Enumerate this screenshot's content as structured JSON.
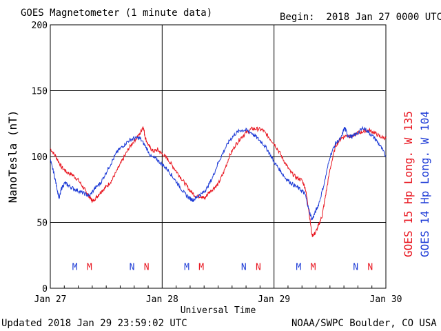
{
  "header": {
    "title": "GOES Magnetometer (1 minute data)",
    "begin": "Begin:  2018 Jan 27 0000 UTC"
  },
  "footer": {
    "updated": "Updated 2018 Jan 29 23:59:02 UTC",
    "credit": "NOAA/SWPC Boulder, CO USA"
  },
  "chart_data": {
    "type": "line",
    "xlabel": "Universal Time",
    "ylabel": "NanoTesla (nT)",
    "xlim": [
      0,
      3
    ],
    "ylim": [
      0,
      200
    ],
    "grid": true,
    "x_ticks": [
      {
        "value": 0,
        "label": "Jan 27"
      },
      {
        "value": 1,
        "label": "Jan 28"
      },
      {
        "value": 2,
        "label": "Jan 29"
      },
      {
        "value": 3,
        "label": "Jan 30"
      }
    ],
    "y_ticks": [
      0,
      50,
      100,
      150,
      200
    ],
    "legend_placement": "right-vertical",
    "series": [
      {
        "name": "GOES 15 Hp  Long. W 135",
        "color": "#e8141e",
        "points": [
          [
            0,
            106
          ],
          [
            0.05,
            100
          ],
          [
            0.1,
            92
          ],
          [
            0.15,
            88
          ],
          [
            0.2,
            86
          ],
          [
            0.25,
            82
          ],
          [
            0.3,
            76
          ],
          [
            0.33,
            72
          ],
          [
            0.36,
            68
          ],
          [
            0.38,
            66
          ],
          [
            0.42,
            70
          ],
          [
            0.46,
            74
          ],
          [
            0.5,
            77
          ],
          [
            0.55,
            82
          ],
          [
            0.6,
            90
          ],
          [
            0.65,
            98
          ],
          [
            0.7,
            106
          ],
          [
            0.75,
            112
          ],
          [
            0.8,
            117
          ],
          [
            0.83,
            123
          ],
          [
            0.85,
            114
          ],
          [
            0.88,
            108
          ],
          [
            0.92,
            104
          ],
          [
            0.96,
            105
          ],
          [
            1.0,
            102
          ],
          [
            1.05,
            98
          ],
          [
            1.1,
            92
          ],
          [
            1.15,
            86
          ],
          [
            1.2,
            80
          ],
          [
            1.25,
            74
          ],
          [
            1.3,
            70
          ],
          [
            1.35,
            70
          ],
          [
            1.38,
            68
          ],
          [
            1.41,
            72
          ],
          [
            1.46,
            76
          ],
          [
            1.5,
            79
          ],
          [
            1.55,
            88
          ],
          [
            1.6,
            100
          ],
          [
            1.65,
            108
          ],
          [
            1.7,
            114
          ],
          [
            1.75,
            118
          ],
          [
            1.8,
            121
          ],
          [
            1.85,
            121
          ],
          [
            1.9,
            120
          ],
          [
            1.95,
            115
          ],
          [
            2.0,
            110
          ],
          [
            2.05,
            103
          ],
          [
            2.1,
            95
          ],
          [
            2.15,
            88
          ],
          [
            2.2,
            84
          ],
          [
            2.25,
            82
          ],
          [
            2.28,
            76
          ],
          [
            2.31,
            60
          ],
          [
            2.34,
            40
          ],
          [
            2.37,
            42
          ],
          [
            2.4,
            48
          ],
          [
            2.43,
            55
          ],
          [
            2.46,
            70
          ],
          [
            2.5,
            90
          ],
          [
            2.55,
            108
          ],
          [
            2.6,
            114
          ],
          [
            2.65,
            116
          ],
          [
            2.7,
            115
          ],
          [
            2.75,
            118
          ],
          [
            2.8,
            119
          ],
          [
            2.85,
            120
          ],
          [
            2.9,
            118
          ],
          [
            2.95,
            115
          ],
          [
            3.0,
            114
          ]
        ]
      },
      {
        "name": "GOES 14 Hp  Long. W 104",
        "color": "#1c3ad6",
        "points": [
          [
            0,
            97
          ],
          [
            0.03,
            88
          ],
          [
            0.06,
            76
          ],
          [
            0.08,
            68
          ],
          [
            0.1,
            76
          ],
          [
            0.13,
            80
          ],
          [
            0.16,
            78
          ],
          [
            0.2,
            76
          ],
          [
            0.25,
            74
          ],
          [
            0.3,
            72
          ],
          [
            0.35,
            70
          ],
          [
            0.4,
            76
          ],
          [
            0.45,
            80
          ],
          [
            0.5,
            88
          ],
          [
            0.55,
            96
          ],
          [
            0.6,
            104
          ],
          [
            0.65,
            108
          ],
          [
            0.7,
            112
          ],
          [
            0.75,
            114
          ],
          [
            0.8,
            114
          ],
          [
            0.85,
            108
          ],
          [
            0.9,
            100
          ],
          [
            0.95,
            98
          ],
          [
            1.0,
            94
          ],
          [
            1.05,
            90
          ],
          [
            1.1,
            84
          ],
          [
            1.15,
            78
          ],
          [
            1.2,
            72
          ],
          [
            1.25,
            68
          ],
          [
            1.28,
            67
          ],
          [
            1.32,
            70
          ],
          [
            1.36,
            72
          ],
          [
            1.4,
            76
          ],
          [
            1.45,
            84
          ],
          [
            1.5,
            95
          ],
          [
            1.55,
            104
          ],
          [
            1.6,
            112
          ],
          [
            1.65,
            117
          ],
          [
            1.7,
            120
          ],
          [
            1.75,
            120
          ],
          [
            1.8,
            118
          ],
          [
            1.85,
            114
          ],
          [
            1.9,
            110
          ],
          [
            1.95,
            104
          ],
          [
            2.0,
            96
          ],
          [
            2.05,
            90
          ],
          [
            2.1,
            84
          ],
          [
            2.15,
            80
          ],
          [
            2.2,
            77
          ],
          [
            2.25,
            74
          ],
          [
            2.28,
            71
          ],
          [
            2.31,
            60
          ],
          [
            2.34,
            52
          ],
          [
            2.37,
            58
          ],
          [
            2.4,
            64
          ],
          [
            2.45,
            80
          ],
          [
            2.5,
            100
          ],
          [
            2.55,
            110
          ],
          [
            2.6,
            114
          ],
          [
            2.63,
            122
          ],
          [
            2.66,
            116
          ],
          [
            2.7,
            115
          ],
          [
            2.75,
            118
          ],
          [
            2.8,
            122
          ],
          [
            2.85,
            118
          ],
          [
            2.9,
            114
          ],
          [
            2.95,
            108
          ],
          [
            3.0,
            100
          ]
        ]
      }
    ],
    "markers": [
      {
        "label": "M",
        "x": 0.22,
        "color": "#1c3ad6"
      },
      {
        "label": "M",
        "x": 0.35,
        "color": "#e8141e"
      },
      {
        "label": "N",
        "x": 0.73,
        "color": "#1c3ad6"
      },
      {
        "label": "N",
        "x": 0.86,
        "color": "#e8141e"
      },
      {
        "label": "M",
        "x": 1.22,
        "color": "#1c3ad6"
      },
      {
        "label": "M",
        "x": 1.35,
        "color": "#e8141e"
      },
      {
        "label": "N",
        "x": 1.73,
        "color": "#1c3ad6"
      },
      {
        "label": "N",
        "x": 1.86,
        "color": "#e8141e"
      },
      {
        "label": "M",
        "x": 2.22,
        "color": "#1c3ad6"
      },
      {
        "label": "M",
        "x": 2.35,
        "color": "#e8141e"
      },
      {
        "label": "N",
        "x": 2.73,
        "color": "#1c3ad6"
      },
      {
        "label": "N",
        "x": 2.86,
        "color": "#e8141e"
      }
    ]
  }
}
